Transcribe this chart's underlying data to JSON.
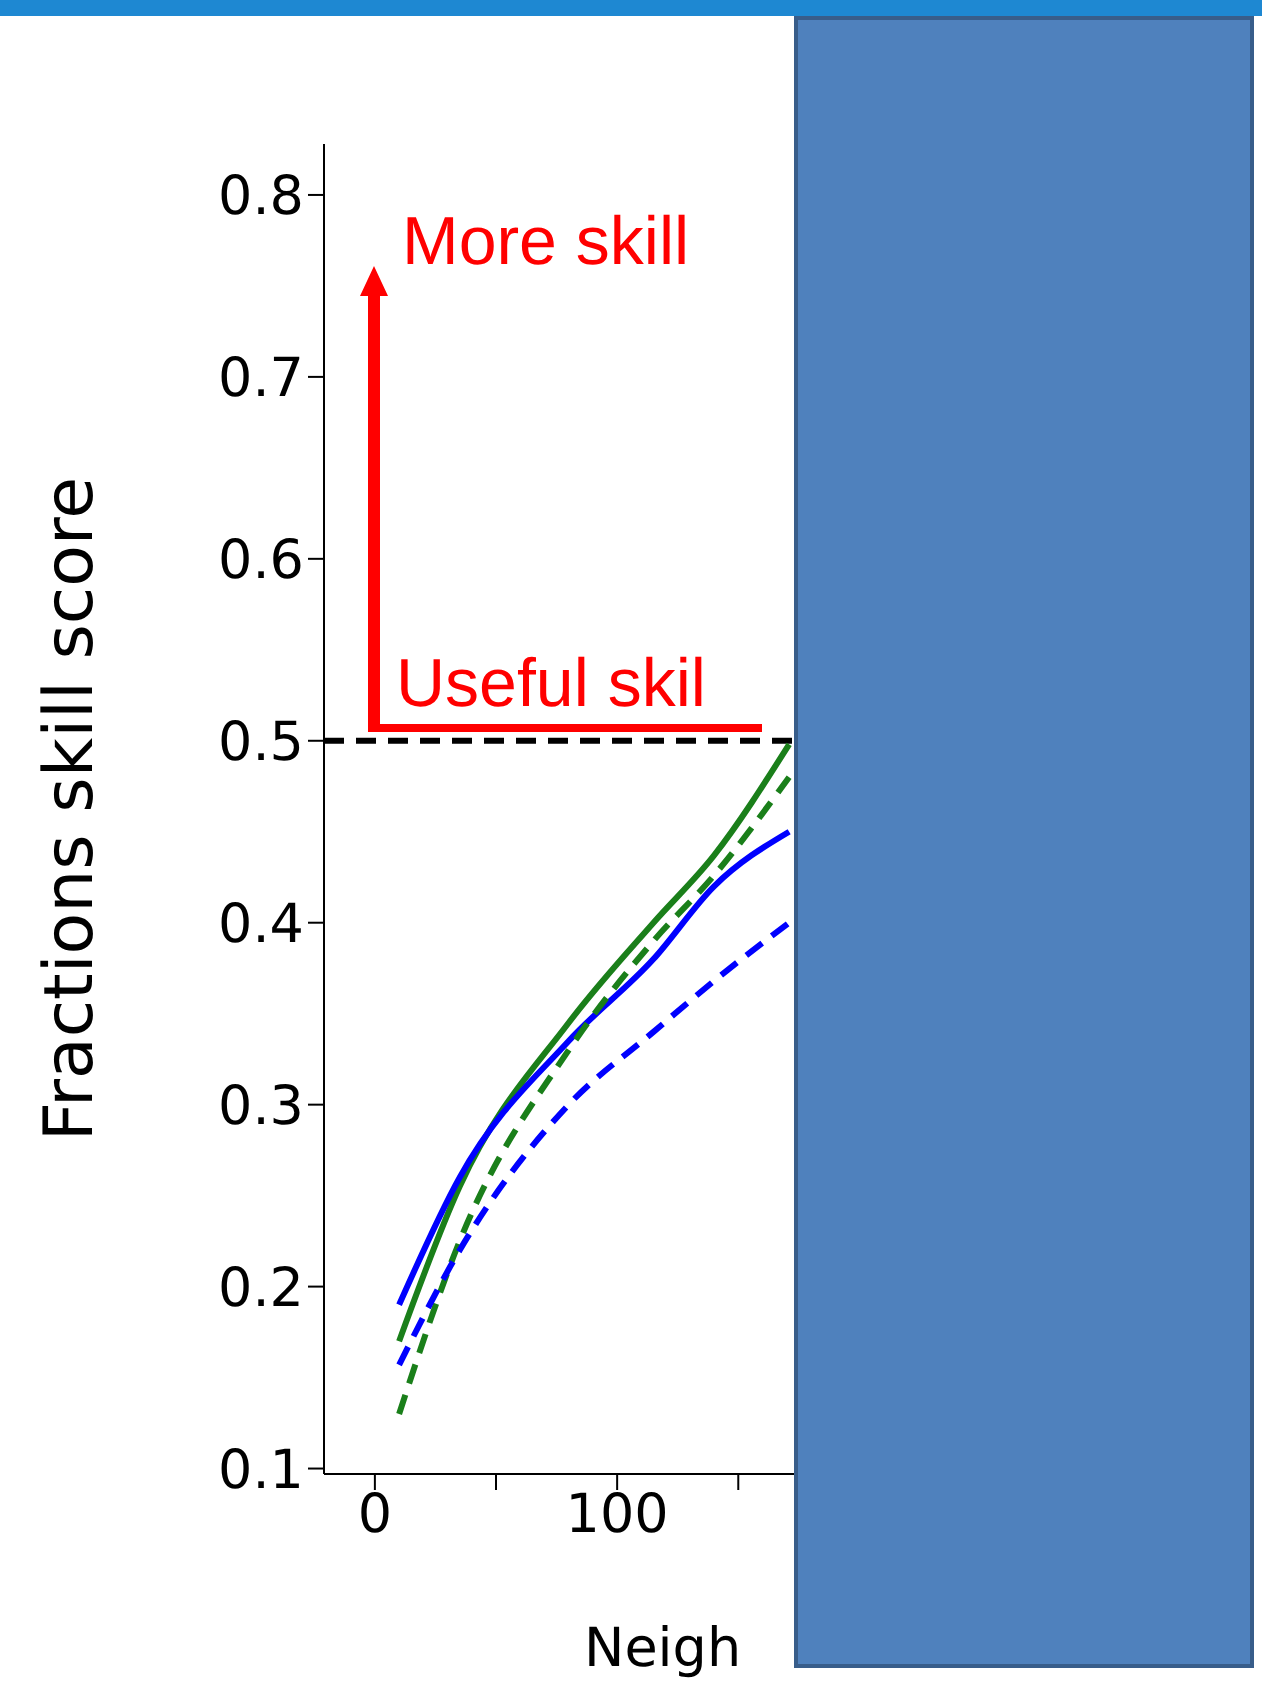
{
  "chart_data": {
    "type": "line",
    "xlabel": "Neigh",
    "ylabel": "Fractions skill score",
    "x": [
      10,
      35,
      80,
      115,
      140,
      171
    ],
    "xlim": [
      -21,
      173
    ],
    "xticks": [
      0,
      {
        "value": 50,
        "label": null
      },
      100,
      {
        "value": 150,
        "label": null
      }
    ],
    "ylim": [
      0.097,
      0.828
    ],
    "yticks": [
      0.1,
      0.2,
      0.3,
      0.4,
      0.5,
      0.6,
      0.7,
      0.8
    ],
    "series": [
      {
        "color": "#1a7f1a",
        "values": [
          0.17,
          0.255,
          0.345,
          0.4,
          0.437,
          0.498
        ]
      },
      {
        "color": "#0000ff",
        "values": [
          0.19,
          0.26,
          0.335,
          0.38,
          0.42,
          0.45
        ]
      },
      {
        "color": "#1a7f1a",
        "line_style": "dashed",
        "values": [
          0.13,
          0.225,
          0.33,
          0.39,
          0.426,
          0.48
        ]
      },
      {
        "color": "#0000ff",
        "line_style": "dashed",
        "values": [
          0.157,
          0.22,
          0.3,
          0.34,
          0.368,
          0.4
        ]
      }
    ],
    "ref_lines": [
      {
        "axis": "y",
        "value": 0.5,
        "color": "#000000",
        "line_style": "dashed"
      }
    ],
    "annotations": [
      "More skill",
      "Useful skil"
    ],
    "marker": "none"
  }
}
